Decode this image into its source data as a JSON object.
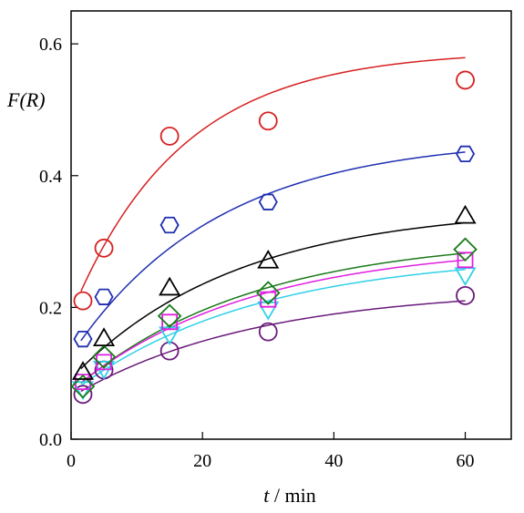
{
  "chart_data": {
    "type": "scatter",
    "title": "",
    "xlabel_var": "t",
    "xlabel_unit": " / min",
    "ylabel": "F(R)",
    "xlim": [
      0,
      67
    ],
    "ylim": [
      0,
      0.65
    ],
    "x_ticks": [
      0,
      20,
      40,
      60
    ],
    "x_tick_labels": [
      "0",
      "20",
      "40",
      "60"
    ],
    "y_ticks": [
      0.0,
      0.2,
      0.4,
      0.6
    ],
    "y_tick_labels": [
      "0.0",
      "0.2",
      "0.4",
      "0.6"
    ],
    "grid": false,
    "legend": "none",
    "x": [
      1.8,
      5,
      15,
      30,
      60
    ],
    "series": [
      {
        "marker": "circle",
        "color": "#d62020",
        "values": [
          0.21,
          0.29,
          0.46,
          0.483,
          0.545
        ],
        "fit": {
          "a": 0.19,
          "b": 0.4,
          "k": 0.06
        }
      },
      {
        "marker": "hexagon",
        "color": "#1f2fb0",
        "values": [
          0.152,
          0.216,
          0.325,
          0.36,
          0.433
        ],
        "fit": {
          "a": 0.128,
          "b": 0.33,
          "k": 0.045
        }
      },
      {
        "marker": "triangle-up",
        "color": "#000000",
        "values": [
          0.101,
          0.152,
          0.229,
          0.27,
          0.338
        ],
        "fit": {
          "a": 0.092,
          "b": 0.26,
          "k": 0.04
        }
      },
      {
        "marker": "diamond",
        "color": "#1a7a1a",
        "values": [
          0.08,
          0.125,
          0.187,
          0.222,
          0.288
        ],
        "fit": {
          "a": 0.072,
          "b": 0.236,
          "k": 0.037
        }
      },
      {
        "marker": "square",
        "color": "#e020e0",
        "values": [
          0.087,
          0.117,
          0.178,
          0.212,
          0.272
        ],
        "fit": {
          "a": 0.074,
          "b": 0.222,
          "k": 0.037
        }
      },
      {
        "marker": "triangle-down",
        "color": "#30d0e8",
        "values": [
          0.077,
          0.108,
          0.16,
          0.198,
          0.25
        ],
        "fit": {
          "a": 0.07,
          "b": 0.212,
          "k": 0.036
        }
      },
      {
        "marker": "circle",
        "color": "#6a1a7a",
        "values": [
          0.068,
          0.105,
          0.134,
          0.163,
          0.218
        ],
        "fit": {
          "a": 0.064,
          "b": 0.165,
          "k": 0.036
        }
      }
    ]
  }
}
